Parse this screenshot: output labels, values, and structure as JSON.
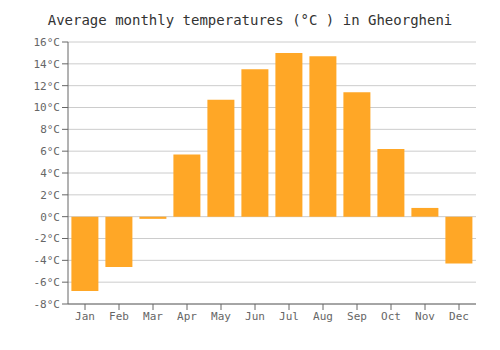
{
  "chart_data": {
    "type": "bar",
    "title": "Average monthly temperatures (°C ) in Gheorgheni",
    "categories": [
      "Jan",
      "Feb",
      "Mar",
      "Apr",
      "May",
      "Jun",
      "Jul",
      "Aug",
      "Sep",
      "Oct",
      "Nov",
      "Dec"
    ],
    "values": [
      -6.8,
      -4.6,
      -0.2,
      5.7,
      10.7,
      13.5,
      15.0,
      14.7,
      11.4,
      6.2,
      0.8,
      -4.3
    ],
    "color": "#FFA726",
    "ylim": [
      -8,
      16
    ],
    "yticks": [
      {
        "value": -8,
        "label": "-8°C"
      },
      {
        "value": -6,
        "label": "-6°C"
      },
      {
        "value": -4,
        "label": "-4°C"
      },
      {
        "value": -2,
        "label": "-2°C"
      },
      {
        "value": 0,
        "label": "0°C"
      },
      {
        "value": 2,
        "label": "2°C"
      },
      {
        "value": 4,
        "label": "4°C"
      },
      {
        "value": 6,
        "label": "6°C"
      },
      {
        "value": 8,
        "label": "8°C"
      },
      {
        "value": 10,
        "label": "10°C"
      },
      {
        "value": 12,
        "label": "12°C"
      },
      {
        "value": 14,
        "label": "14°C"
      },
      {
        "value": 16,
        "label": "16°C"
      }
    ],
    "grid": true
  }
}
